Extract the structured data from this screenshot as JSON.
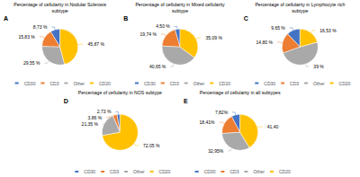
{
  "chart_data": [
    {
      "type": "pie",
      "title": "Percentage of cellularity in Nodular Sclerosis\nsubtype",
      "annotations": [
        "A"
      ],
      "categories": [
        "CD30",
        "CD3",
        "Other",
        "CD20"
      ],
      "values": [
        8.73,
        15.83,
        29.55,
        45.87
      ],
      "value_labels": [
        "8,73 %",
        "15,83 %",
        "29,55 %",
        "45,87 %"
      ],
      "colors": [
        "#4472C4",
        "#ED7D31",
        "#A9A9A9",
        "#FFC000"
      ],
      "data_labels": true,
      "legend": "bottom"
    },
    {
      "type": "pie",
      "title": "Percentage of cellularity in Mixed cellularity\nsubtype",
      "annotations": [
        "B"
      ],
      "categories": [
        "CD30",
        "CD3",
        "Other",
        "CD20"
      ],
      "values": [
        4.5,
        19.74,
        40.65,
        35.09
      ],
      "value_labels": [
        "4,50 %",
        "19,74 %",
        "40,65 %",
        "35,09 %"
      ],
      "colors": [
        "#4472C4",
        "#ED7D31",
        "#A9A9A9",
        "#FFC000"
      ],
      "data_labels": true,
      "legend": "bottom"
    },
    {
      "type": "pie",
      "title": "Percentage of cellularity in Lymphocyte rich\nsubtype",
      "annotations": [
        "C"
      ],
      "categories": [
        "CD30",
        "CD3",
        "Other",
        "CD20"
      ],
      "values": [
        9.65,
        14.8,
        39.0,
        16.53
      ],
      "value_labels": [
        "9,65 %",
        "14,80 %",
        "39 %",
        "16,53 %"
      ],
      "colors": [
        "#4472C4",
        "#ED7D31",
        "#A9A9A9",
        "#FFC000"
      ],
      "data_labels": true,
      "legend": "bottom"
    },
    {
      "type": "pie",
      "title": "Percentage of cellularity in NOS subtype",
      "annotations": [
        "D"
      ],
      "categories": [
        "CD30",
        "CD3",
        "Other",
        "CD20"
      ],
      "values": [
        2.73,
        3.86,
        21.35,
        72.05
      ],
      "value_labels": [
        "2,73 %",
        "3,86 %",
        "21,35 %",
        "72,05 %"
      ],
      "colors": [
        "#4472C4",
        "#ED7D31",
        "#A9A9A9",
        "#FFC000"
      ],
      "data_labels": true,
      "legend": "bottom"
    },
    {
      "type": "pie",
      "title": "Percentage of cellularity in all subtypes",
      "annotations": [
        "E"
      ],
      "categories": [
        "CD30",
        "CD3",
        "Other",
        "CD20"
      ],
      "values": [
        7.82,
        18.41,
        32.95,
        41.4
      ],
      "value_labels": [
        "7,82%",
        "18,41%",
        "32,95%",
        "41,40"
      ],
      "colors": [
        "#4472C4",
        "#ED7D31",
        "#A9A9A9",
        "#FFC000"
      ],
      "data_labels": true,
      "legend": "bottom"
    }
  ]
}
